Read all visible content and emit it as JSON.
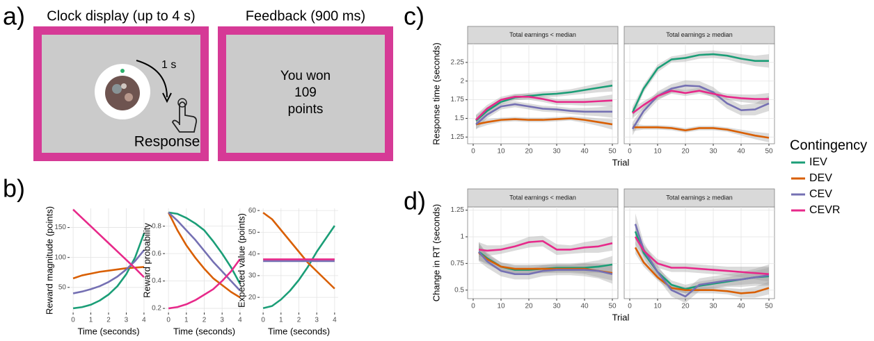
{
  "panel_labels": [
    "a)",
    "b)",
    "c)",
    "d)"
  ],
  "panel_a": {
    "clock_title": "Clock display (up to 4 s)",
    "clock_interval": "1 s",
    "response": "Response",
    "feedback_title": "Feedback (900 ms)",
    "feedback_text": [
      "You won",
      "109",
      "points"
    ]
  },
  "chart_data": [
    {
      "type": "line",
      "xlabel": "Time (seconds)",
      "ylabel": "Reward magnitude (points)",
      "grid": true,
      "x": [
        0,
        0.5,
        1,
        1.5,
        2,
        2.5,
        3,
        3.5,
        4
      ],
      "xlim": [
        -0.2,
        4.2
      ],
      "xticks": [
        0,
        1,
        2,
        3,
        4
      ],
      "ylim": [
        8,
        182
      ],
      "yticks": [
        50,
        100,
        150
      ],
      "series": [
        {
          "name": "IEV",
          "color": "#1b9e77",
          "values": [
            15,
            17,
            21,
            28,
            38,
            52,
            72,
            100,
            140
          ]
        },
        {
          "name": "DEV",
          "color": "#d95f02",
          "values": [
            65,
            70,
            73,
            76,
            78,
            80,
            82,
            83,
            84
          ]
        },
        {
          "name": "CEV",
          "color": "#7570b3",
          "values": [
            40,
            43,
            47,
            52,
            59,
            68,
            80,
            94,
            112
          ]
        },
        {
          "name": "CEVR",
          "color": "#e7298a",
          "values": [
            180,
            166,
            152,
            138,
            124,
            110,
            96,
            82,
            67
          ]
        }
      ]
    },
    {
      "type": "line",
      "xlabel": "Time (seconds)",
      "ylabel": "Reward probability",
      "grid": true,
      "x": [
        0,
        0.5,
        1,
        1.5,
        2,
        2.5,
        3,
        3.5,
        4
      ],
      "xlim": [
        -0.2,
        4.2
      ],
      "xticks": [
        0,
        1,
        2,
        3,
        4
      ],
      "ylim": [
        0.17,
        0.93
      ],
      "yticks": [
        0.2,
        0.4,
        0.6,
        0.8
      ],
      "series": [
        {
          "name": "IEV",
          "color": "#1b9e77",
          "values": [
            0.9,
            0.89,
            0.86,
            0.82,
            0.77,
            0.69,
            0.6,
            0.5,
            0.38
          ]
        },
        {
          "name": "DEV",
          "color": "#d95f02",
          "values": [
            0.9,
            0.77,
            0.66,
            0.57,
            0.49,
            0.42,
            0.37,
            0.32,
            0.28
          ]
        },
        {
          "name": "CEV",
          "color": "#7570b3",
          "values": [
            0.9,
            0.84,
            0.77,
            0.7,
            0.62,
            0.54,
            0.47,
            0.4,
            0.33
          ]
        },
        {
          "name": "CEVR",
          "color": "#e7298a",
          "values": [
            0.2,
            0.21,
            0.23,
            0.26,
            0.3,
            0.34,
            0.4,
            0.47,
            0.56
          ]
        }
      ]
    },
    {
      "type": "line",
      "xlabel": "Time (seconds)",
      "ylabel": "Expected value (points)",
      "grid": true,
      "x": [
        0,
        0.5,
        1,
        1.5,
        2,
        2.5,
        3,
        3.5,
        4
      ],
      "xlim": [
        -0.2,
        4.2
      ],
      "xticks": [
        0,
        1,
        2,
        3,
        4
      ],
      "ylim": [
        13,
        61
      ],
      "yticks": [
        20,
        30,
        40,
        50,
        60
      ],
      "series": [
        {
          "name": "IEV",
          "color": "#1b9e77",
          "values": [
            15,
            16,
            19,
            23,
            28,
            34,
            41,
            47,
            53
          ]
        },
        {
          "name": "DEV",
          "color": "#d95f02",
          "values": [
            59,
            56,
            51,
            46,
            41,
            36,
            32,
            28,
            24
          ]
        },
        {
          "name": "CEV",
          "color": "#7570b3",
          "values": [
            36.7,
            36.7,
            36.7,
            36.7,
            36.7,
            36.7,
            36.7,
            36.7,
            36.7
          ]
        },
        {
          "name": "CEVR",
          "color": "#e7298a",
          "values": [
            37.5,
            37.5,
            37.5,
            37.5,
            37.5,
            37.5,
            37.5,
            37.5,
            37.5
          ]
        }
      ]
    },
    {
      "type": "line",
      "strip": "Total earnings < median",
      "xlabel": "Trial",
      "ylabel": "Response time (seconds)",
      "grid": true,
      "legend": "right",
      "legend_title": "Contingency",
      "x": [
        1,
        5,
        10,
        15,
        20,
        25,
        30,
        35,
        40,
        45,
        50
      ],
      "xlim": [
        -2,
        52
      ],
      "xticks": [
        0,
        10,
        20,
        30,
        40,
        50
      ],
      "ylim": [
        1.16,
        2.5
      ],
      "yticks": [
        1.25,
        1.5,
        1.75,
        2.0,
        2.25
      ],
      "series": [
        {
          "name": "IEV",
          "color": "#1b9e77",
          "values": [
            1.47,
            1.6,
            1.72,
            1.78,
            1.8,
            1.82,
            1.83,
            1.85,
            1.88,
            1.91,
            1.94
          ],
          "errors": [
            0.07,
            0.05,
            0.04,
            0.04,
            0.04,
            0.04,
            0.04,
            0.04,
            0.05,
            0.06,
            0.08
          ]
        },
        {
          "name": "DEV",
          "color": "#d95f02",
          "values": [
            1.42,
            1.45,
            1.48,
            1.49,
            1.48,
            1.48,
            1.49,
            1.5,
            1.48,
            1.45,
            1.42
          ],
          "errors": [
            0.06,
            0.04,
            0.03,
            0.03,
            0.03,
            0.03,
            0.03,
            0.03,
            0.04,
            0.05,
            0.07
          ]
        },
        {
          "name": "CEV",
          "color": "#7570b3",
          "values": [
            1.42,
            1.55,
            1.66,
            1.69,
            1.66,
            1.63,
            1.62,
            1.6,
            1.59,
            1.59,
            1.59
          ],
          "errors": [
            0.07,
            0.05,
            0.04,
            0.04,
            0.04,
            0.04,
            0.04,
            0.04,
            0.05,
            0.06,
            0.08
          ]
        },
        {
          "name": "CEVR",
          "color": "#e7298a",
          "values": [
            1.48,
            1.63,
            1.75,
            1.79,
            1.79,
            1.76,
            1.72,
            1.72,
            1.72,
            1.73,
            1.74
          ],
          "errors": [
            0.07,
            0.05,
            0.04,
            0.04,
            0.04,
            0.04,
            0.04,
            0.04,
            0.05,
            0.06,
            0.08
          ]
        }
      ]
    },
    {
      "type": "line",
      "strip": "Total earnings ≥ median",
      "grid": true,
      "x": [
        1,
        5,
        10,
        15,
        20,
        25,
        30,
        35,
        40,
        45,
        50
      ],
      "xlim": [
        -2,
        52
      ],
      "xticks": [
        0,
        10,
        20,
        30,
        40,
        50
      ],
      "ylim": [
        1.16,
        2.5
      ],
      "series": [
        {
          "name": "IEV",
          "color": "#1b9e77",
          "values": [
            1.58,
            1.9,
            2.17,
            2.29,
            2.31,
            2.35,
            2.36,
            2.34,
            2.3,
            2.27,
            2.27
          ],
          "errors": [
            0.08,
            0.05,
            0.05,
            0.04,
            0.05,
            0.05,
            0.05,
            0.05,
            0.06,
            0.07,
            0.09
          ]
        },
        {
          "name": "DEV",
          "color": "#d95f02",
          "values": [
            1.38,
            1.38,
            1.38,
            1.37,
            1.34,
            1.37,
            1.37,
            1.35,
            1.31,
            1.27,
            1.24
          ],
          "errors": [
            0.05,
            0.03,
            0.03,
            0.03,
            0.03,
            0.03,
            0.03,
            0.03,
            0.04,
            0.05,
            0.06
          ]
        },
        {
          "name": "CEV",
          "color": "#7570b3",
          "values": [
            1.36,
            1.6,
            1.8,
            1.9,
            1.94,
            1.93,
            1.85,
            1.7,
            1.61,
            1.62,
            1.7
          ],
          "errors": [
            0.09,
            0.06,
            0.06,
            0.06,
            0.07,
            0.07,
            0.07,
            0.07,
            0.07,
            0.08,
            0.1
          ]
        },
        {
          "name": "CEVR",
          "color": "#e7298a",
          "values": [
            1.57,
            1.68,
            1.8,
            1.87,
            1.84,
            1.87,
            1.83,
            1.79,
            1.77,
            1.76,
            1.76
          ],
          "errors": [
            0.07,
            0.05,
            0.04,
            0.04,
            0.04,
            0.04,
            0.04,
            0.04,
            0.05,
            0.06,
            0.08
          ]
        }
      ]
    },
    {
      "type": "line",
      "strip": "Total earnings < median",
      "xlabel": "Trial",
      "ylabel": "Change in RT (seconds)",
      "grid": true,
      "x": [
        2,
        5,
        10,
        15,
        20,
        25,
        30,
        35,
        40,
        45,
        50
      ],
      "xlim": [
        -2,
        52
      ],
      "xticks": [
        0,
        10,
        20,
        30,
        40,
        50
      ],
      "ylim": [
        0.42,
        1.28
      ],
      "yticks": [
        0.5,
        0.75,
        1.0,
        1.25
      ],
      "series": [
        {
          "name": "IEV",
          "color": "#1b9e77",
          "values": [
            0.86,
            0.8,
            0.72,
            0.69,
            0.69,
            0.7,
            0.71,
            0.71,
            0.71,
            0.72,
            0.74
          ],
          "errors": [
            0.08,
            0.05,
            0.04,
            0.04,
            0.04,
            0.04,
            0.04,
            0.04,
            0.05,
            0.06,
            0.08
          ]
        },
        {
          "name": "DEV",
          "color": "#d95f02",
          "values": [
            0.85,
            0.79,
            0.72,
            0.7,
            0.7,
            0.7,
            0.7,
            0.7,
            0.7,
            0.68,
            0.66
          ],
          "errors": [
            0.07,
            0.05,
            0.04,
            0.04,
            0.04,
            0.04,
            0.04,
            0.04,
            0.05,
            0.06,
            0.07
          ]
        },
        {
          "name": "CEV",
          "color": "#7570b3",
          "values": [
            0.86,
            0.77,
            0.68,
            0.65,
            0.65,
            0.68,
            0.69,
            0.69,
            0.69,
            0.68,
            0.65
          ],
          "errors": [
            0.09,
            0.06,
            0.05,
            0.05,
            0.05,
            0.05,
            0.05,
            0.05,
            0.06,
            0.07,
            0.09
          ]
        },
        {
          "name": "CEVR",
          "color": "#e7298a",
          "values": [
            0.88,
            0.87,
            0.88,
            0.91,
            0.95,
            0.96,
            0.88,
            0.88,
            0.9,
            0.91,
            0.94
          ],
          "errors": [
            0.07,
            0.05,
            0.04,
            0.04,
            0.05,
            0.05,
            0.05,
            0.04,
            0.05,
            0.06,
            0.07
          ]
        }
      ]
    },
    {
      "type": "line",
      "strip": "Total earnings ≥ median",
      "grid": true,
      "x": [
        2,
        5,
        10,
        15,
        20,
        25,
        30,
        35,
        40,
        45,
        50
      ],
      "xlim": [
        -2,
        52
      ],
      "xticks": [
        0,
        10,
        20,
        30,
        40,
        50
      ],
      "ylim": [
        0.42,
        1.28
      ],
      "series": [
        {
          "name": "IEV",
          "color": "#1b9e77",
          "values": [
            1.05,
            0.85,
            0.67,
            0.55,
            0.51,
            0.54,
            0.56,
            0.58,
            0.6,
            0.62,
            0.63
          ],
          "errors": [
            0.08,
            0.05,
            0.04,
            0.04,
            0.04,
            0.04,
            0.04,
            0.04,
            0.05,
            0.06,
            0.08
          ]
        },
        {
          "name": "DEV",
          "color": "#d95f02",
          "values": [
            0.9,
            0.76,
            0.62,
            0.52,
            0.5,
            0.5,
            0.5,
            0.49,
            0.47,
            0.48,
            0.52
          ],
          "errors": [
            0.06,
            0.04,
            0.03,
            0.03,
            0.03,
            0.03,
            0.03,
            0.03,
            0.04,
            0.05,
            0.06
          ]
        },
        {
          "name": "CEV",
          "color": "#7570b3",
          "values": [
            1.12,
            0.88,
            0.67,
            0.5,
            0.44,
            0.55,
            0.57,
            0.59,
            0.6,
            0.62,
            0.64
          ],
          "errors": [
            0.1,
            0.07,
            0.06,
            0.06,
            0.06,
            0.06,
            0.06,
            0.06,
            0.07,
            0.08,
            0.1
          ]
        },
        {
          "name": "CEVR",
          "color": "#e7298a",
          "values": [
            1.0,
            0.87,
            0.75,
            0.71,
            0.71,
            0.7,
            0.69,
            0.68,
            0.67,
            0.66,
            0.65
          ],
          "errors": [
            0.07,
            0.05,
            0.04,
            0.04,
            0.04,
            0.04,
            0.04,
            0.04,
            0.05,
            0.06,
            0.07
          ]
        }
      ]
    }
  ]
}
